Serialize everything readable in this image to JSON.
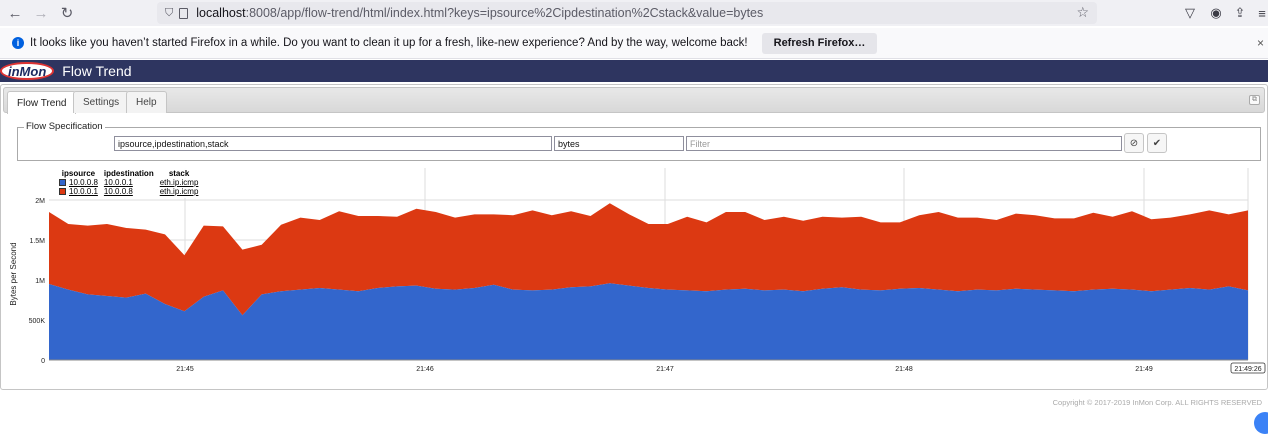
{
  "browser": {
    "url_host": "localhost",
    "url_rest": ":8008/app/flow-trend/html/index.html?keys=ipsource%2Cipdestination%2Cstack&value=bytes",
    "icons": [
      "back-icon",
      "forward-icon",
      "reload-icon",
      "page-icon",
      "bookmark-star-icon",
      "pocket-icon",
      "account-icon",
      "extensions-icon",
      "menu-icon"
    ]
  },
  "notification": {
    "message": "It looks like you haven’t started Firefox in a while. Do you want to clean it up for a fresh, like-new experience? And by the way, welcome back!",
    "button": "Refresh Firefox…",
    "close": "×"
  },
  "app": {
    "logo": "inMon",
    "title": "Flow Trend"
  },
  "tabs": [
    {
      "label": "Flow Trend",
      "active": true
    },
    {
      "label": "Settings",
      "active": false
    },
    {
      "label": "Help",
      "active": false
    }
  ],
  "flow_spec": {
    "legend": "Flow Specification",
    "keys_value": "ipsource,ipdestination,stack",
    "value_value": "bytes",
    "filter_placeholder": "Filter",
    "clear_symbol": "⊘",
    "apply_symbol": "✔"
  },
  "chart_legend": {
    "headers": [
      "ipsource",
      "ipdestination",
      "stack"
    ],
    "rows": [
      {
        "color": "#3366cc",
        "cells": [
          "10.0.0.8",
          "10.0.0.1",
          "eth.ip.icmp"
        ]
      },
      {
        "color": "#dc3912",
        "cells": [
          "10.0.0.1",
          "10.0.0.8",
          "eth.ip.icmp"
        ]
      }
    ]
  },
  "chart_data": {
    "type": "area",
    "stacked": true,
    "ylabel": "Bytes per Second",
    "yticks": [
      "0",
      "500K",
      "1M",
      "1.5M",
      "2M"
    ],
    "ylim": [
      0,
      2400000
    ],
    "xticks": [
      "21:45",
      "21:46",
      "21:47",
      "21:48",
      "21:49",
      "21:49:26"
    ],
    "x_start": "21:44:40",
    "x_end": "21:49:26",
    "grid": true,
    "series": [
      {
        "name": "10.0.0.8 → 10.0.0.1 eth.ip.icmp",
        "color": "#3366cc",
        "values": [
          950000,
          880000,
          820000,
          800000,
          780000,
          830000,
          700000,
          610000,
          790000,
          870000,
          560000,
          820000,
          860000,
          880000,
          900000,
          880000,
          860000,
          900000,
          920000,
          930000,
          890000,
          880000,
          900000,
          940000,
          880000,
          870000,
          880000,
          910000,
          920000,
          960000,
          930000,
          900000,
          880000,
          870000,
          860000,
          880000,
          890000,
          870000,
          880000,
          860000,
          890000,
          910000,
          880000,
          870000,
          890000,
          900000,
          880000,
          860000,
          880000,
          870000,
          890000,
          880000,
          870000,
          860000,
          880000,
          890000,
          880000,
          860000,
          880000,
          900000,
          880000,
          920000,
          870000
        ]
      },
      {
        "name": "10.0.0.1 → 10.0.0.8 eth.ip.icmp",
        "color": "#dc3912",
        "values": [
          900000,
          820000,
          860000,
          900000,
          870000,
          800000,
          870000,
          700000,
          890000,
          800000,
          820000,
          620000,
          830000,
          900000,
          850000,
          980000,
          940000,
          900000,
          870000,
          960000,
          960000,
          900000,
          920000,
          880000,
          930000,
          1000000,
          930000,
          950000,
          880000,
          1000000,
          890000,
          800000,
          820000,
          920000,
          860000,
          970000,
          960000,
          880000,
          910000,
          880000,
          900000,
          870000,
          910000,
          850000,
          830000,
          910000,
          970000,
          920000,
          900000,
          880000,
          940000,
          930000,
          900000,
          910000,
          960000,
          900000,
          980000,
          900000,
          900000,
          920000,
          990000,
          900000,
          1000000
        ]
      }
    ]
  },
  "copyright": "Copyright © 2017-2019 InMon Corp. ALL RIGHTS RESERVED"
}
